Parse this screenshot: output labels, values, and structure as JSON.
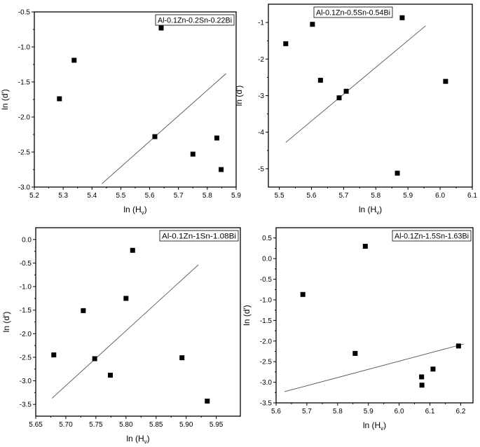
{
  "chart_data": [
    {
      "type": "scatter",
      "legend": "Al-0.1Zn-0.2Sn-0.22Bi",
      "legend_placement": "top-right",
      "xlabel": "ln (H_v)",
      "ylabel": "ln (d')",
      "xlim": [
        5.2,
        5.9
      ],
      "ylim": [
        -3.0,
        -0.5
      ],
      "xticks": [
        [
          5.2,
          "5.2"
        ],
        [
          5.3,
          "5.3"
        ],
        [
          5.4,
          "5.4"
        ],
        [
          5.5,
          "5.5"
        ],
        [
          5.6,
          "5.6"
        ],
        [
          5.7,
          "5.7"
        ],
        [
          5.8,
          "5.8"
        ],
        [
          5.9,
          "5.9"
        ]
      ],
      "yticks": [
        [
          -3.0,
          "-3.0"
        ],
        [
          -2.5,
          "-2.5"
        ],
        [
          -2.0,
          "-2.0"
        ],
        [
          -1.5,
          "-1.5"
        ],
        [
          -1.0,
          "-1.0"
        ],
        [
          -0.5,
          "-0.5"
        ]
      ],
      "points": [
        [
          5.287,
          -1.74
        ],
        [
          5.338,
          -1.19
        ],
        [
          5.618,
          -2.28
        ],
        [
          5.64,
          -0.73
        ],
        [
          5.75,
          -2.53
        ],
        [
          5.833,
          -2.3
        ],
        [
          5.848,
          -2.75
        ]
      ],
      "fit_line": [
        [
          5.435,
          -2.95
        ],
        [
          5.865,
          -1.38
        ]
      ]
    },
    {
      "type": "scatter",
      "legend": "Al-0.1Zn-0.5Sn-0.54Bi",
      "legend_placement": "top-center",
      "xlabel": "ln (H_v)",
      "ylabel": "ln (d')",
      "xlim": [
        5.466,
        6.1
      ],
      "ylim": [
        -5.5,
        -0.5
      ],
      "xticks": [
        [
          5.5,
          "5.5"
        ],
        [
          5.6,
          "5.6"
        ],
        [
          5.7,
          "5.7"
        ],
        [
          5.8,
          "5.8"
        ],
        [
          5.9,
          "5.9"
        ],
        [
          6.0,
          "6.0"
        ],
        [
          6.1,
          "6.1"
        ]
      ],
      "yticks": [
        [
          -5,
          "-5"
        ],
        [
          -4,
          "-4"
        ],
        [
          -3,
          "-3"
        ],
        [
          -2,
          "-2"
        ],
        [
          -1,
          "-1"
        ]
      ],
      "points": [
        [
          5.52,
          -1.58
        ],
        [
          5.603,
          -1.05
        ],
        [
          5.628,
          -2.58
        ],
        [
          5.686,
          -3.06
        ],
        [
          5.708,
          -2.88
        ],
        [
          5.867,
          -5.12
        ],
        [
          5.882,
          -0.87
        ],
        [
          6.017,
          -2.61
        ]
      ],
      "fit_line": [
        [
          5.52,
          -4.28
        ],
        [
          5.955,
          -1.09
        ]
      ]
    },
    {
      "type": "scatter",
      "legend": "Al-0.1Zn-1Sn-1.08Bi",
      "legend_placement": "top-right",
      "xlabel": "ln (H_v)",
      "ylabel": "ln (d')",
      "xlim": [
        5.65,
        5.99
      ],
      "ylim": [
        -3.75,
        0.25
      ],
      "xticks": [
        [
          5.65,
          "5.65"
        ],
        [
          5.7,
          "5.70"
        ],
        [
          5.75,
          "5.75"
        ],
        [
          5.8,
          "5.80"
        ],
        [
          5.85,
          "5.85"
        ],
        [
          5.9,
          "5.90"
        ],
        [
          5.95,
          "5.95"
        ]
      ],
      "yticks": [
        [
          -3.5,
          "-3.5"
        ],
        [
          -3.0,
          "-3.0"
        ],
        [
          -2.5,
          "-2.5"
        ],
        [
          -2.0,
          "-2.0"
        ],
        [
          -1.5,
          "-1.5"
        ],
        [
          -1.0,
          "-1.0"
        ],
        [
          -0.5,
          "-0.5"
        ],
        [
          0.0,
          "0.0"
        ]
      ],
      "points": [
        [
          5.68,
          -2.45
        ],
        [
          5.729,
          -1.51
        ],
        [
          5.748,
          -2.53
        ],
        [
          5.774,
          -2.88
        ],
        [
          5.8,
          -1.25
        ],
        [
          5.811,
          -0.23
        ],
        [
          5.893,
          -2.51
        ],
        [
          5.935,
          -3.43
        ]
      ],
      "fit_line": [
        [
          5.677,
          -3.37
        ],
        [
          5.92,
          -0.54
        ]
      ]
    },
    {
      "type": "scatter",
      "legend": "Al-0.1Zn-1.5Sn-1.63Bi",
      "legend_placement": "top-right",
      "xlabel": "ln (H_v)",
      "ylabel": "ln (d')",
      "xlim": [
        5.6,
        6.24
      ],
      "ylim": [
        -3.5,
        0.75
      ],
      "xticks": [
        [
          5.6,
          "5.6"
        ],
        [
          5.7,
          "5.7"
        ],
        [
          5.8,
          "5.8"
        ],
        [
          5.9,
          "5.9"
        ],
        [
          6.0,
          "6.0"
        ],
        [
          6.1,
          "6.1"
        ],
        [
          6.2,
          "6.2"
        ]
      ],
      "yticks": [
        [
          -3.5,
          "-3.5"
        ],
        [
          -3.0,
          "-3.0"
        ],
        [
          -2.5,
          "-2.5"
        ],
        [
          -2.0,
          "-2.0"
        ],
        [
          -1.5,
          "-1.5"
        ],
        [
          -1.0,
          "-1.0"
        ],
        [
          -0.5,
          "-0.5"
        ],
        [
          0.0,
          "0.0"
        ],
        [
          0.5,
          "0.5"
        ]
      ],
      "points": [
        [
          5.687,
          -0.87
        ],
        [
          5.857,
          -2.3
        ],
        [
          5.89,
          0.3
        ],
        [
          6.073,
          -2.87
        ],
        [
          6.074,
          -3.07
        ],
        [
          6.11,
          -2.68
        ],
        [
          6.193,
          -2.12
        ]
      ],
      "fit_line": [
        [
          5.627,
          -3.23
        ],
        [
          6.21,
          -2.07
        ]
      ]
    }
  ]
}
